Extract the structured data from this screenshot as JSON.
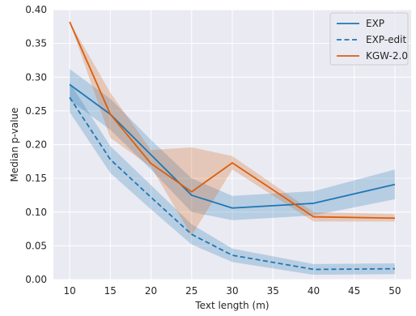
{
  "chart_data": {
    "type": "line",
    "title": "",
    "xlabel": "Text length (m)",
    "ylabel": "Median p-value",
    "x": [
      10,
      15,
      20,
      25,
      30,
      40,
      50
    ],
    "xlim": [
      8,
      52
    ],
    "ylim": [
      0.0,
      0.4
    ],
    "xticks": [
      "10",
      "15",
      "20",
      "25",
      "30",
      "35",
      "40",
      "45",
      "50"
    ],
    "yticks": [
      "0.00",
      "0.05",
      "0.10",
      "0.15",
      "0.20",
      "0.25",
      "0.30",
      "0.35",
      "0.40"
    ],
    "grid": true,
    "legend_position": "top-right",
    "series": [
      {
        "name": "EXP",
        "style": "solid",
        "color": "#1f77b4",
        "values": [
          0.289,
          0.245,
          0.185,
          0.125,
          0.106,
          0.113,
          0.141
        ],
        "ci_upper": [
          0.312,
          0.268,
          0.207,
          0.15,
          0.124,
          0.131,
          0.163
        ],
        "ci_lower": [
          0.266,
          0.222,
          0.163,
          0.1,
          0.088,
          0.095,
          0.119
        ]
      },
      {
        "name": "EXP-edit",
        "style": "dashed",
        "color": "#1f77b4",
        "values": [
          0.27,
          0.178,
          0.122,
          0.067,
          0.036,
          0.015,
          0.016
        ],
        "ci_upper": [
          0.292,
          0.198,
          0.14,
          0.082,
          0.046,
          0.023,
          0.024
        ],
        "ci_lower": [
          0.248,
          0.158,
          0.104,
          0.052,
          0.026,
          0.007,
          0.008
        ]
      },
      {
        "name": "KGW-2.0",
        "style": "solid",
        "color": "#d95f0e",
        "values": [
          0.382,
          0.245,
          0.172,
          0.13,
          0.173,
          0.093,
          0.091
        ],
        "ci_upper": [
          0.382,
          0.277,
          0.192,
          0.196,
          0.183,
          0.1,
          0.097
        ],
        "ci_lower": [
          0.382,
          0.21,
          0.167,
          0.065,
          0.163,
          0.086,
          0.086
        ]
      }
    ]
  }
}
